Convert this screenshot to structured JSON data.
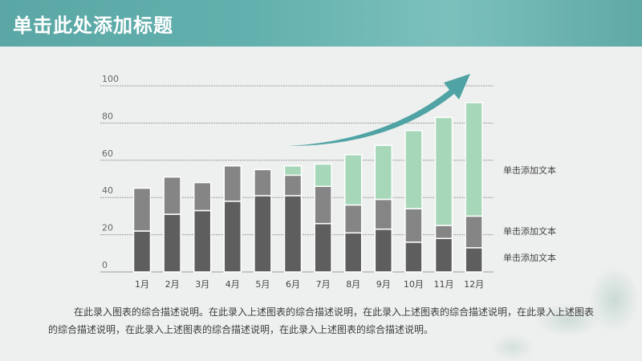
{
  "header": {
    "title": "单击此处添加标题"
  },
  "description": "在此录入图表的综合描述说明。在此录入上述图表的综合描述说明，在此录入上述图表的综合描述说明，在此录入上述图表的综合描述说明，在此录入上述图表的综合描述说明，在此录入上述图表的综合描述说明。",
  "colors": {
    "dark": "#5e5e5e",
    "mid": "#858585",
    "green": "#a7d7b9",
    "arrow": "#4fa3a4",
    "grid": "#9a9a9a"
  },
  "chart_data": {
    "type": "bar",
    "stacked": true,
    "categories": [
      "1月",
      "2月",
      "3月",
      "4月",
      "5月",
      "6月",
      "7月",
      "8月",
      "9月",
      "10月",
      "11月",
      "12月"
    ],
    "ylim": [
      0,
      100
    ],
    "yticks": [
      0,
      20,
      40,
      60,
      80,
      100
    ],
    "grid": true,
    "series": [
      {
        "name": "单击添加文本",
        "color": "dark",
        "values": [
          22,
          31,
          33,
          38,
          41,
          41,
          26,
          21,
          23,
          16,
          18,
          13
        ]
      },
      {
        "name": "单击添加文本",
        "color": "mid",
        "values": [
          23,
          20,
          15,
          19,
          14,
          11,
          20,
          15,
          16,
          18,
          7,
          17
        ]
      },
      {
        "name": "单击添加文本",
        "color": "green",
        "values": [
          0,
          0,
          0,
          0,
          0,
          5,
          12,
          27,
          29,
          42,
          58,
          61
        ]
      }
    ],
    "legend_position": "right",
    "annotation": "upward-trend-arrow"
  }
}
